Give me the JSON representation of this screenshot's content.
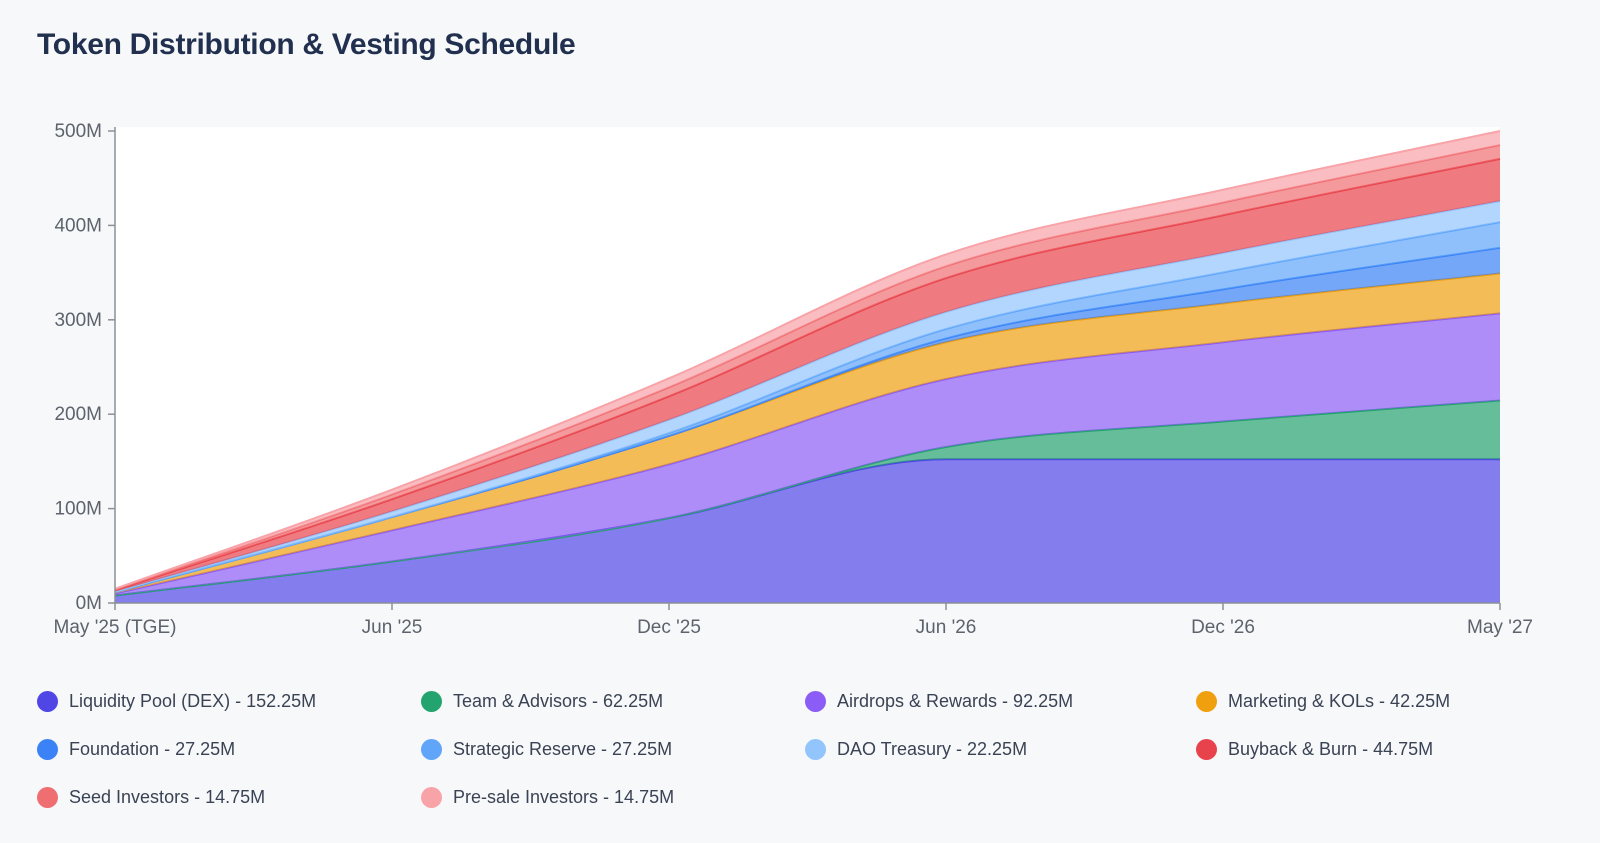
{
  "page": {
    "background": "#f7f8fa",
    "title": "Token Distribution & Vesting Schedule",
    "title_color": "#22304f"
  },
  "chart_data": {
    "type": "area",
    "stacked": true,
    "title": "Token Distribution & Vesting Schedule",
    "unit": "M tokens",
    "grid": false,
    "legend_position": "bottom",
    "plot_background": "#ffffff",
    "fill_opacity": 0.7,
    "categories": [
      "May '25 (TGE)",
      "Jun '25",
      "Dec '25",
      "Jun '26",
      "Dec '26",
      "May '27"
    ],
    "ylim": [
      0,
      500
    ],
    "y_ticks": [
      {
        "value": 0,
        "label": "0M"
      },
      {
        "value": 100,
        "label": "100M"
      },
      {
        "value": 200,
        "label": "200M"
      },
      {
        "value": 300,
        "label": "300M"
      },
      {
        "value": 400,
        "label": "400M"
      },
      {
        "value": 500,
        "label": "500M"
      }
    ],
    "series": [
      {
        "name": "Liquidity Pool (DEX)",
        "color": "#4f46e5",
        "total": 152.25,
        "values": [
          8,
          44,
          90,
          152.25,
          152.25,
          152.25
        ]
      },
      {
        "name": "Team & Advisors",
        "color": "#23a36d",
        "total": 62.25,
        "values": [
          0,
          0,
          0,
          13,
          40,
          62.25
        ]
      },
      {
        "name": "Airdrops & Rewards",
        "color": "#8b5cf6",
        "total": 92.25,
        "values": [
          2,
          33,
          57,
          72,
          84,
          92.25
        ]
      },
      {
        "name": "Marketing & KOLs",
        "color": "#f0a00f",
        "total": 42.25,
        "values": [
          1.5,
          14,
          30,
          39,
          41,
          42.25
        ]
      },
      {
        "name": "Foundation",
        "color": "#3b82f6",
        "total": 27.25,
        "values": [
          0,
          0,
          0,
          4,
          15,
          27.25
        ]
      },
      {
        "name": "Strategic Reserve",
        "color": "#60a5fa",
        "total": 27.25,
        "values": [
          0,
          0,
          3,
          10,
          18,
          27.25
        ]
      },
      {
        "name": "DAO Treasury",
        "color": "#93c5fd",
        "total": 22.25,
        "values": [
          0.5,
          6,
          14,
          18,
          20.5,
          22.25
        ]
      },
      {
        "name": "Buyback & Burn",
        "color": "#e8434c",
        "total": 44.75,
        "values": [
          1.5,
          13,
          25,
          36,
          40,
          44.75
        ]
      },
      {
        "name": "Seed Investors",
        "color": "#ef6e72",
        "total": 14.75,
        "values": [
          0.75,
          5,
          9.5,
          12.5,
          13.5,
          14.75
        ]
      },
      {
        "name": "Pre-sale Investors",
        "color": "#f8a3a8",
        "total": 14.75,
        "values": [
          0.75,
          5,
          9.5,
          12.5,
          13.5,
          14.75
        ]
      }
    ]
  },
  "legend": {
    "items": [
      {
        "label": "Liquidity Pool (DEX) - 152.25M",
        "color": "#4f46e5"
      },
      {
        "label": "Team & Advisors - 62.25M",
        "color": "#23a36d"
      },
      {
        "label": "Airdrops & Rewards - 92.25M",
        "color": "#8b5cf6"
      },
      {
        "label": "Marketing & KOLs - 42.25M",
        "color": "#f0a00f"
      },
      {
        "label": "Foundation - 27.25M",
        "color": "#3b82f6"
      },
      {
        "label": "Strategic Reserve - 27.25M",
        "color": "#60a5fa"
      },
      {
        "label": "DAO Treasury - 22.25M",
        "color": "#93c5fd"
      },
      {
        "label": "Buyback & Burn - 44.75M",
        "color": "#e8434c"
      },
      {
        "label": "Seed Investors - 14.75M",
        "color": "#ef6e72"
      },
      {
        "label": "Pre-sale Investors - 14.75M",
        "color": "#f8a3a8"
      }
    ]
  }
}
